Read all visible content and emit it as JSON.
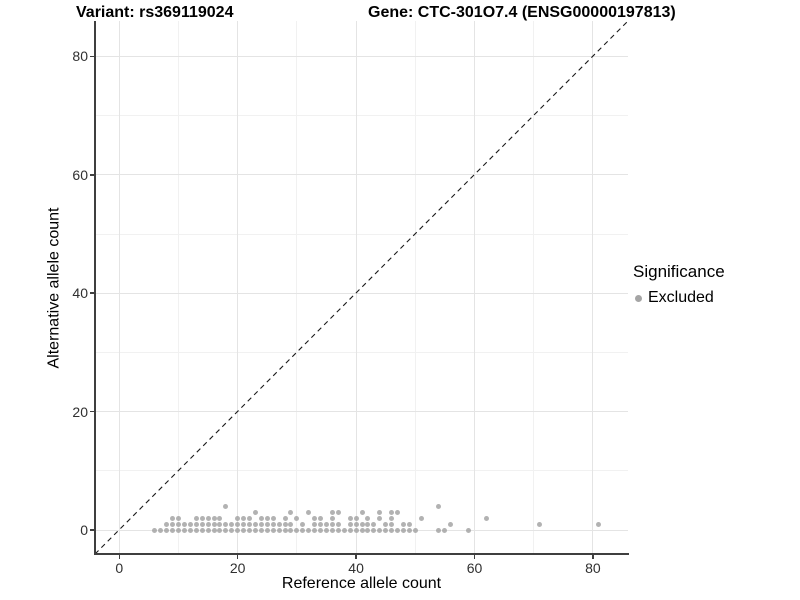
{
  "titles": {
    "variant": "Variant: rs369119024",
    "gene": "Gene: CTC-301O7.4 (ENSG00000197813)"
  },
  "axes": {
    "x": {
      "label": "Reference allele count"
    },
    "y": {
      "label": "Alternative allele count"
    }
  },
  "legend": {
    "title": "Significance",
    "items": [
      {
        "label": "Excluded",
        "color": "#a5a5a5"
      }
    ]
  },
  "colors": {
    "background": "#ffffff",
    "axis_line": "#3f3f3f",
    "tick_label": "#303030",
    "grid_major": "#e4e4e4",
    "grid_minor": "#f1f1f1",
    "point": "#a5a5a5",
    "reference_line": "#1a1a1a"
  },
  "chart_data": {
    "type": "scatter",
    "title": "Variant: rs369119024    Gene: CTC-301O7.4 (ENSG00000197813)",
    "xlabel": "Reference allele count",
    "ylabel": "Alternative allele count",
    "xlim": [
      -4,
      86
    ],
    "ylim": [
      -4,
      86
    ],
    "x_ticks": [
      0,
      20,
      40,
      60,
      80
    ],
    "y_ticks": [
      0,
      20,
      40,
      60,
      80
    ],
    "x_minor": [
      10,
      30,
      50,
      70
    ],
    "y_minor": [
      10,
      30,
      50,
      70
    ],
    "grid": true,
    "legend_position": "right",
    "reference_line": {
      "style": "dashed",
      "equation": "y = x"
    },
    "series": [
      {
        "name": "Excluded",
        "color": "#a5a5a5",
        "points_by_alt_count": {
          "0": [
            6,
            7,
            8,
            9,
            10,
            11,
            12,
            13,
            14,
            15,
            16,
            17,
            18,
            19,
            20,
            21,
            22,
            23,
            24,
            25,
            26,
            27,
            28,
            29,
            30,
            31,
            32,
            33,
            34,
            35,
            36,
            37,
            38,
            39,
            40,
            41,
            42,
            43,
            44,
            45,
            46,
            47,
            48,
            49,
            50,
            54,
            55,
            59
          ],
          "1": [
            8,
            9,
            10,
            11,
            12,
            13,
            14,
            15,
            16,
            17,
            18,
            19,
            20,
            21,
            22,
            23,
            24,
            25,
            26,
            27,
            28,
            29,
            31,
            33,
            34,
            35,
            36,
            37,
            39,
            40,
            41,
            42,
            43,
            45,
            46,
            48,
            49,
            56,
            71,
            81
          ],
          "2": [
            9,
            10,
            13,
            14,
            15,
            16,
            17,
            20,
            21,
            22,
            24,
            25,
            26,
            28,
            30,
            33,
            34,
            36,
            39,
            40,
            42,
            44,
            46,
            51,
            62
          ],
          "3": [
            23,
            29,
            32,
            36,
            37,
            41,
            44,
            46,
            47
          ],
          "4": [
            18,
            54
          ]
        }
      }
    ]
  }
}
